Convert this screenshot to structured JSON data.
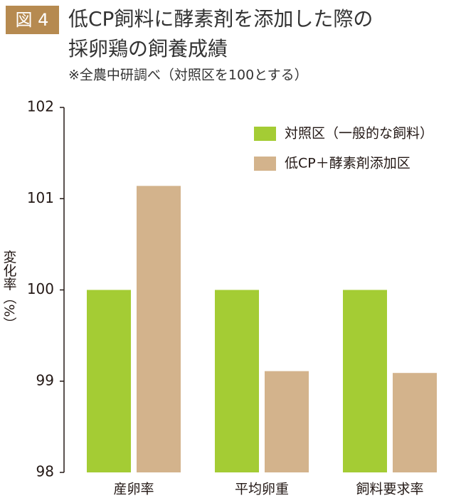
{
  "chart_data": {
    "type": "bar",
    "figure_label": "図 4",
    "title": [
      "低CP飼料に酵素剤を添加した際の",
      "採卵鶏の飼養成績"
    ],
    "subtitle": "※全農中研調べ（対照区を100とする）",
    "y_label": "変化率（%）",
    "categories": [
      "産卵率",
      "平均卵重",
      "飼料要求率"
    ],
    "series": [
      {
        "name": "対照区（一般的な飼料）",
        "color": "#a4cc34",
        "values": [
          100,
          100,
          100
        ]
      },
      {
        "name": "低CP＋酵素剤添加区",
        "color": "#d3b38c",
        "values": [
          101.14,
          99.11,
          99.09
        ]
      }
    ],
    "ylim": [
      98,
      102
    ],
    "yticks": [
      98,
      99,
      100,
      101,
      102
    ],
    "grid": false,
    "legend": "top-right"
  }
}
